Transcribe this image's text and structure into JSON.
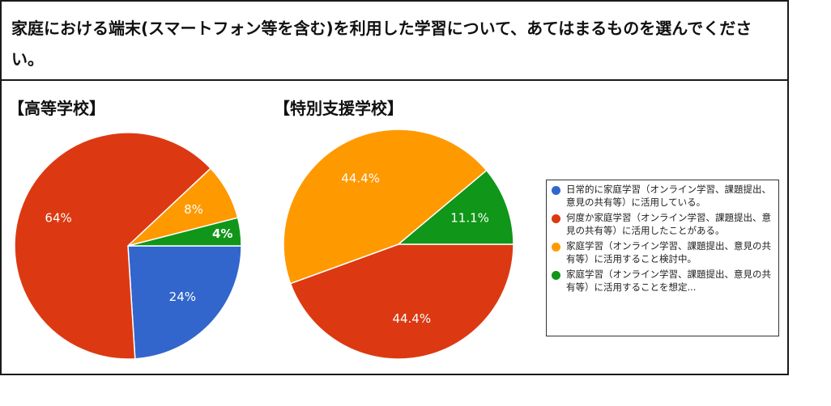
{
  "question": "家庭における端末(スマートフォン等を含む)を利用した学習について、あてはまるものを選んでください。",
  "colors": {
    "blue": "#3366cc",
    "red": "#dc3912",
    "orange": "#ff9900",
    "green": "#109618"
  },
  "chart_data": [
    {
      "type": "pie",
      "title": "【高等学校】",
      "categories": [
        "日常的に家庭学習(オンライン学習、課題提出、意見の共有等)に活用している。",
        "何度か家庭学習(オンライン学習、課題提出、意見の共有等)に活用したことがある。",
        "家庭学習(オンライン学習、課題提出、意見の共有等)に活用すること検討中。",
        "家庭学習(オンライン学習、課題提出、意見の共有等)に活用することを想定..."
      ],
      "values": [
        24,
        64,
        8,
        4
      ],
      "labels": [
        "24%",
        "64%",
        "8%",
        "4%"
      ]
    },
    {
      "type": "pie",
      "title": "【特別支援学校】",
      "categories": [
        "日常的に家庭学習(オンライン学習、課題提出、意見の共有等)に活用している。",
        "何度か家庭学習(オンライン学習、課題提出、意見の共有等)に活用したことがある。",
        "家庭学習(オンライン学習、課題提出、意見の共有等)に活用すること検討中。",
        "家庭学習(オンライン学習、課題提出、意見の共有等)に活用することを想定..."
      ],
      "values": [
        0,
        44.4,
        44.4,
        11.1
      ],
      "labels": [
        "",
        "44.4%",
        "44.4%",
        "11.1%"
      ]
    }
  ],
  "legend": [
    {
      "label": "日常的に家庭学習（オンライン学習、課題提出、意見の共有等）に活用している。",
      "color": "#3366cc"
    },
    {
      "label": "何度か家庭学習（オンライン学習、課題提出、意見の共有等）に活用したことがある。",
      "color": "#dc3912"
    },
    {
      "label": "家庭学習（オンライン学習、課題提出、意見の共有等）に活用すること検討中。",
      "color": "#ff9900"
    },
    {
      "label": "家庭学習（オンライン学習、課題提出、意見の共有等）に活用することを想定...",
      "color": "#109618"
    }
  ]
}
